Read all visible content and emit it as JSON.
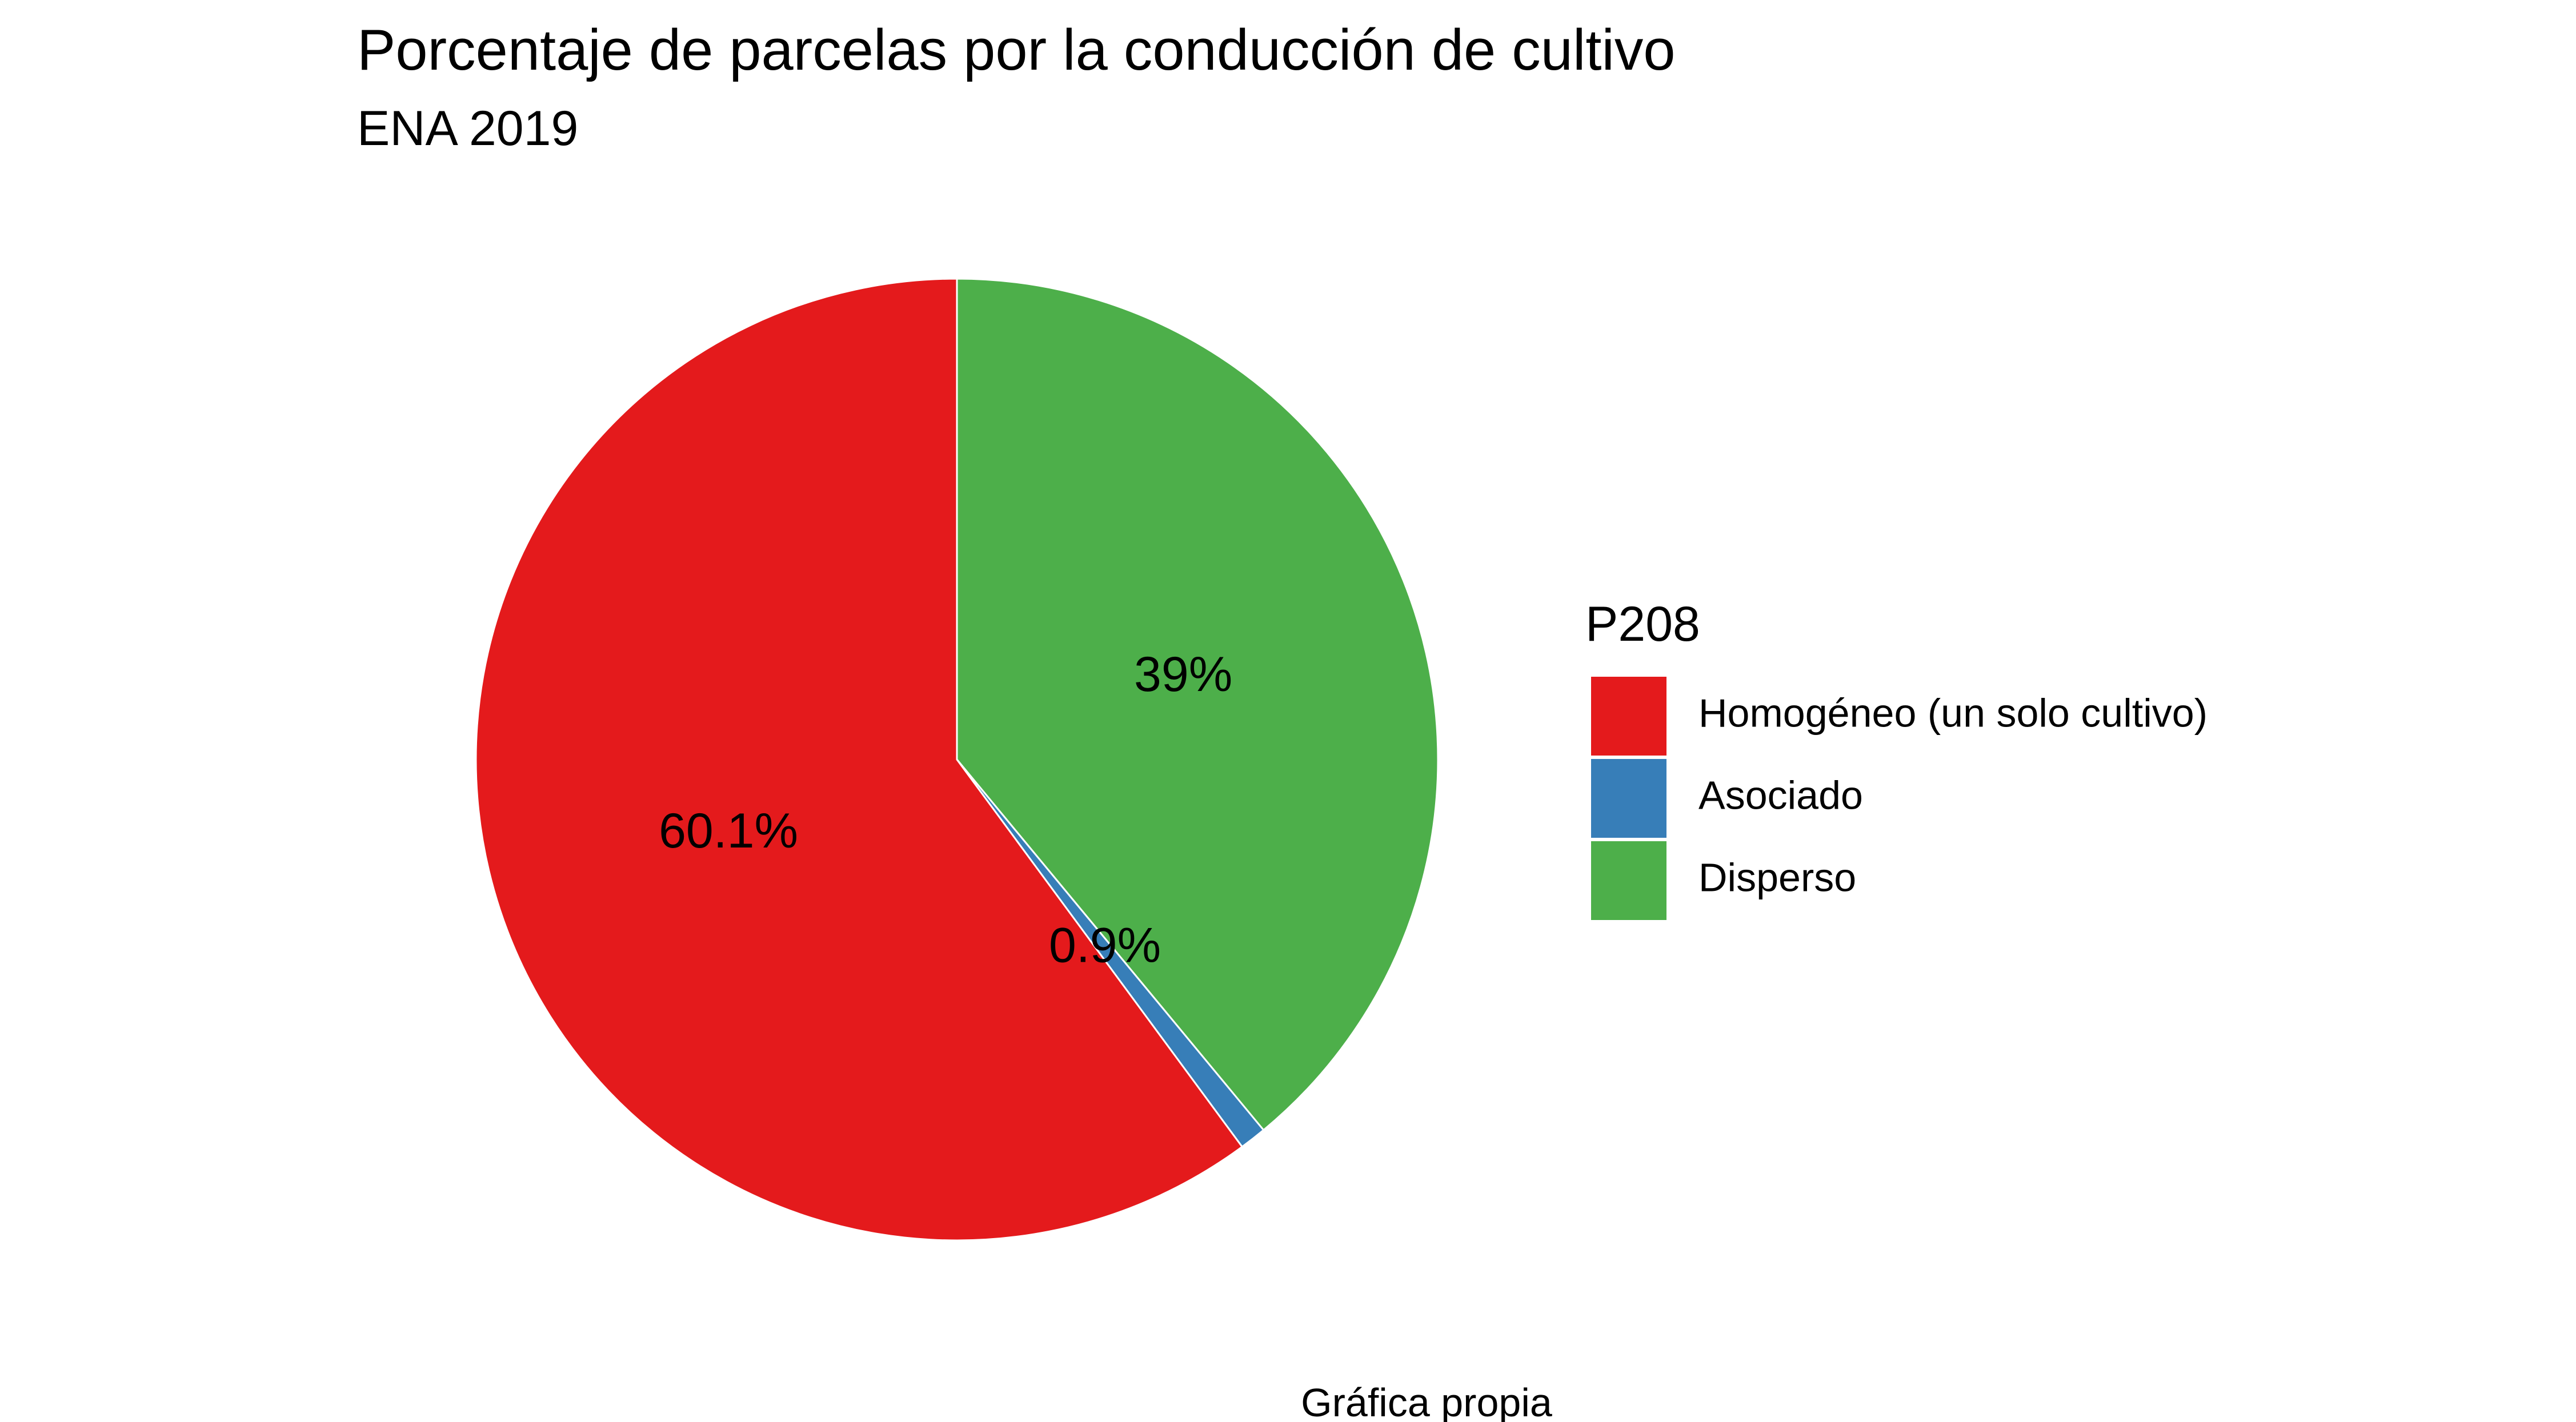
{
  "chart_data": {
    "type": "pie",
    "title": "Porcentaje de parcelas por la conducción de cultivo",
    "subtitle": "ENA 2019",
    "caption": "Gráfica propia",
    "legend_title": "P208",
    "legend_position": "right",
    "slices": [
      {
        "name": "Homogéneo (un solo cultivo)",
        "value": 60.1,
        "label": "60.1%",
        "color": "#E41A1C"
      },
      {
        "name": "Asociado",
        "value": 0.9,
        "label": "0.9%",
        "color": "#377EB8"
      },
      {
        "name": "Disperso",
        "value": 39.0,
        "label": "39%",
        "color": "#4DAF4A"
      }
    ]
  }
}
